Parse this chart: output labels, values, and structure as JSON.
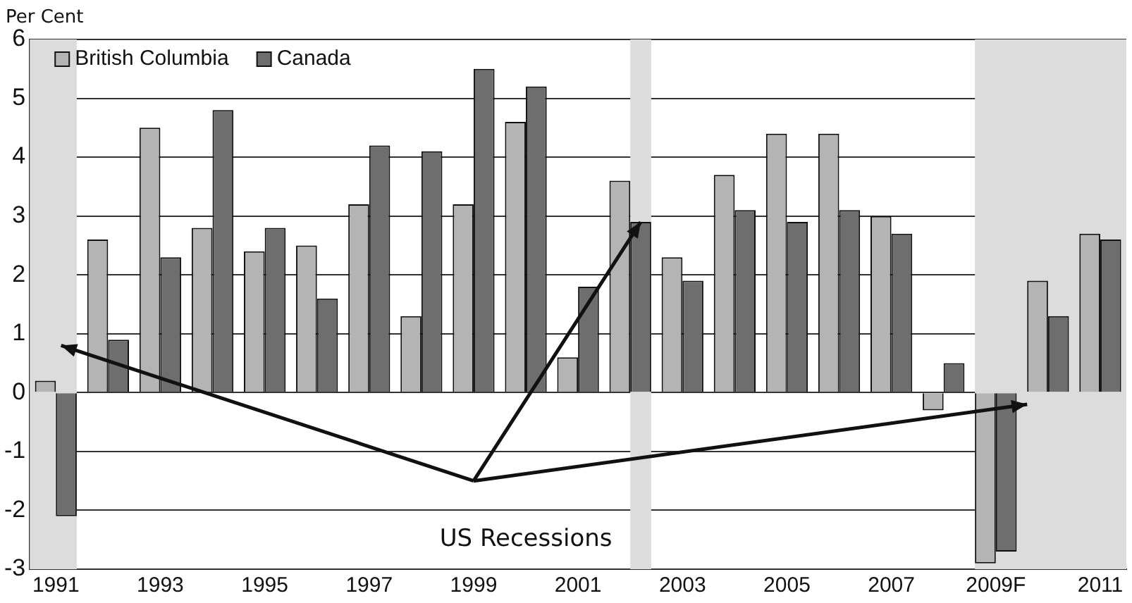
{
  "chart_data": {
    "type": "bar",
    "ylabel": "Per Cent",
    "x": [
      1991,
      1992,
      1993,
      1994,
      1995,
      1996,
      1997,
      1998,
      1999,
      2000,
      2001,
      2002,
      2003,
      2004,
      2005,
      2006,
      2007,
      2008,
      2009,
      2010,
      2011
    ],
    "series": [
      {
        "name": "British Columbia",
        "color": "#b4b4b4",
        "values": [
          0.2,
          2.6,
          4.5,
          2.8,
          2.4,
          2.5,
          3.2,
          1.3,
          3.2,
          4.6,
          0.6,
          3.6,
          2.3,
          3.7,
          4.4,
          4.4,
          3.0,
          -0.3,
          -2.9,
          1.9,
          2.7
        ]
      },
      {
        "name": "Canada",
        "color": "#6e6e6e",
        "values": [
          -2.1,
          0.9,
          2.3,
          4.8,
          2.8,
          1.6,
          4.2,
          4.1,
          5.5,
          5.2,
          1.8,
          2.9,
          1.9,
          3.1,
          2.9,
          3.1,
          2.7,
          0.5,
          -2.7,
          1.3,
          2.6
        ]
      }
    ],
    "xlim": [
      1990.5,
      2011.5
    ],
    "xticks": [
      1991,
      1993,
      1995,
      1997,
      1999,
      2001,
      2003,
      2005,
      2007,
      {
        "value": 2009,
        "label": "2009F"
      },
      2011
    ],
    "ylim": [
      -3,
      6
    ],
    "yticks": [
      -3,
      -2,
      -1,
      0,
      1,
      2,
      3,
      4,
      5,
      6
    ],
    "bands": [
      {
        "axis": "x",
        "from": 1990.5,
        "to": 1991.4,
        "color": "#dcdcdc"
      },
      {
        "axis": "x",
        "from": 2002.0,
        "to": 2002.4,
        "color": "#dcdcdc"
      },
      {
        "axis": "x",
        "from": 2008.6,
        "to": 2011.5,
        "color": "#dcdcdc"
      }
    ],
    "annotations": [
      "US Recessions"
    ],
    "grid": "y",
    "legend": "top left"
  }
}
